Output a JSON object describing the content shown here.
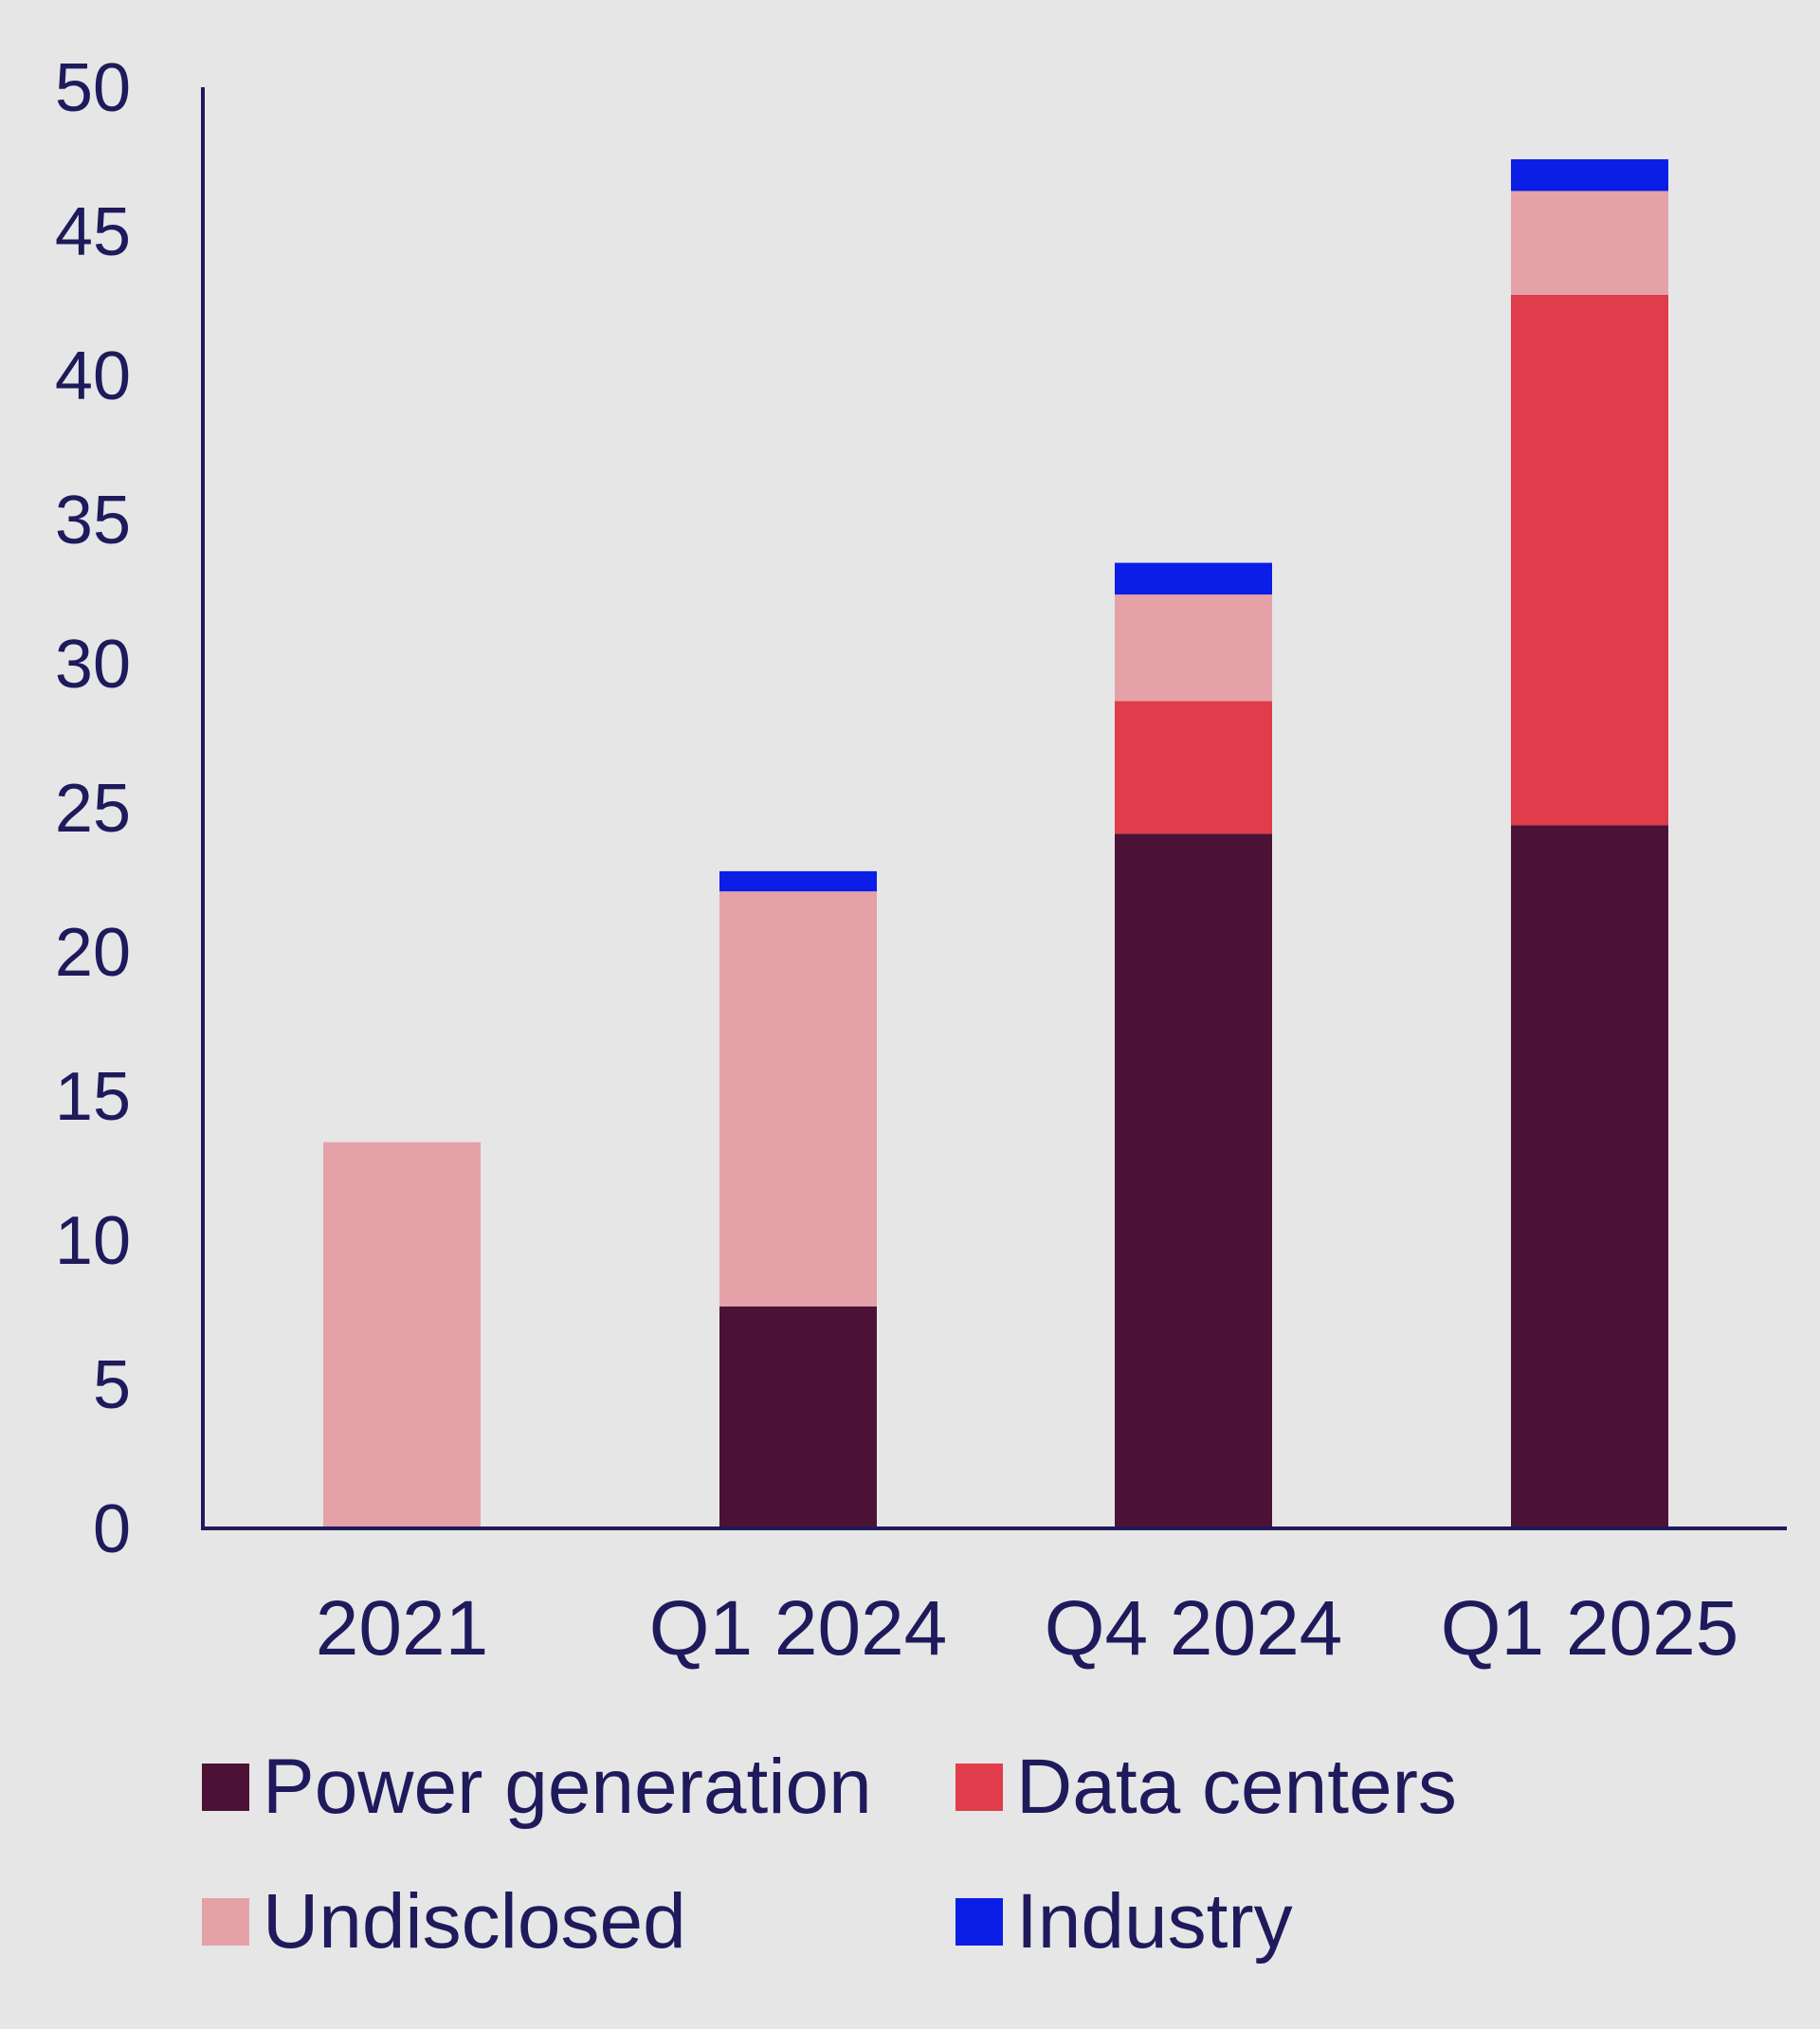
{
  "chart_data": {
    "type": "bar",
    "stacked": true,
    "categories": [
      "2021",
      "Q1 2024",
      "Q4 2024",
      "Q1 2025"
    ],
    "series": [
      {
        "name": "Power generation",
        "color": "#4c1236",
        "values": [
          0,
          7.7,
          24.1,
          24.4
        ]
      },
      {
        "name": "Data centers",
        "color": "#e03c4b",
        "values": [
          0,
          0,
          4.6,
          18.4
        ]
      },
      {
        "name": "Undisclosed",
        "color": "#e4a2a8",
        "values": [
          13.4,
          14.4,
          3.7,
          3.6
        ]
      },
      {
        "name": "Industry",
        "color": "#0a1ee6",
        "values": [
          0,
          0.7,
          1.1,
          1.1
        ]
      }
    ],
    "ylim": [
      0,
      50
    ],
    "yticks": [
      "0",
      "5",
      "10",
      "15",
      "20",
      "25",
      "30",
      "35",
      "40",
      "45",
      "50"
    ],
    "grid": false,
    "legend_position": "bottom",
    "axis_color": "#1f1a5c"
  }
}
